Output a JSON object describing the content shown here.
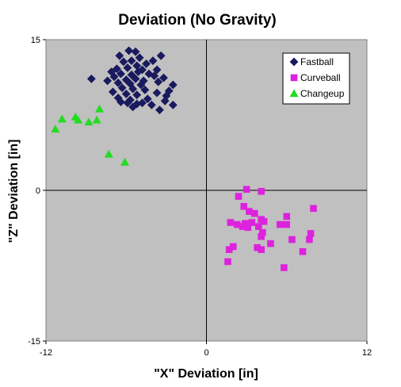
{
  "chart_data": {
    "type": "scatter",
    "title": "Deviation (No Gravity)",
    "xlabel": "\"X\" Deviation [in]",
    "ylabel": "\"Z\" Deviation [in]",
    "xlim": [
      -12,
      12
    ],
    "ylim": [
      -15,
      15
    ],
    "x_ticks": [
      "-12",
      "0",
      "12"
    ],
    "y_ticks": [
      "15",
      "0",
      "-15"
    ],
    "grid": false,
    "plot_background": "#c0c0c0",
    "legend_position": "top-right",
    "series": [
      {
        "name": "Fastball",
        "marker": "diamond",
        "color": "#1a1a5e",
        "points": [
          [
            -5.8,
            13.9
          ],
          [
            -5.3,
            13.8
          ],
          [
            -6.5,
            13.4
          ],
          [
            -5.0,
            13.2
          ],
          [
            -3.4,
            13.4
          ],
          [
            -6.2,
            12.8
          ],
          [
            -5.6,
            12.9
          ],
          [
            -4.5,
            12.6
          ],
          [
            -4.0,
            12.9
          ],
          [
            -5.2,
            12.4
          ],
          [
            -6.7,
            12.1
          ],
          [
            -5.9,
            12.2
          ],
          [
            -4.8,
            12.0
          ],
          [
            -3.7,
            12.0
          ],
          [
            -7.1,
            11.8
          ],
          [
            -6.4,
            11.6
          ],
          [
            -5.6,
            11.5
          ],
          [
            -5.1,
            11.8
          ],
          [
            -4.3,
            11.6
          ],
          [
            -3.9,
            11.4
          ],
          [
            -6.9,
            11.3
          ],
          [
            -6.0,
            11.0
          ],
          [
            -5.3,
            11.1
          ],
          [
            -4.7,
            10.9
          ],
          [
            -3.2,
            11.2
          ],
          [
            -8.6,
            11.1
          ],
          [
            -7.4,
            10.9
          ],
          [
            -6.6,
            10.7
          ],
          [
            -5.7,
            10.6
          ],
          [
            -4.9,
            10.5
          ],
          [
            -3.6,
            10.8
          ],
          [
            -2.5,
            10.5
          ],
          [
            -6.3,
            10.2
          ],
          [
            -5.5,
            10.1
          ],
          [
            -4.6,
            10.0
          ],
          [
            -2.8,
            9.9
          ],
          [
            -7.0,
            9.8
          ],
          [
            -6.0,
            9.6
          ],
          [
            -5.2,
            9.5
          ],
          [
            -3.7,
            9.7
          ],
          [
            -6.6,
            9.2
          ],
          [
            -5.7,
            9.0
          ],
          [
            -4.4,
            9.1
          ],
          [
            -3.0,
            9.4
          ],
          [
            -5.9,
            8.7
          ],
          [
            -5.2,
            8.6
          ],
          [
            -4.1,
            8.5
          ],
          [
            -6.4,
            8.8
          ],
          [
            -5.5,
            8.3
          ],
          [
            -2.5,
            8.5
          ],
          [
            -3.5,
            8.0
          ],
          [
            -4.8,
            8.7
          ],
          [
            -3.1,
            8.9
          ]
        ]
      },
      {
        "name": "Curveball",
        "marker": "square",
        "color": "#dd22dd",
        "points": [
          [
            3.0,
            0.1
          ],
          [
            4.1,
            -0.1
          ],
          [
            2.4,
            -0.6
          ],
          [
            2.8,
            -1.6
          ],
          [
            8.0,
            -1.8
          ],
          [
            3.2,
            -2.1
          ],
          [
            3.6,
            -2.3
          ],
          [
            6.0,
            -2.6
          ],
          [
            4.1,
            -2.9
          ],
          [
            4.3,
            -3.1
          ],
          [
            1.8,
            -3.2
          ],
          [
            2.3,
            -3.4
          ],
          [
            2.9,
            -3.3
          ],
          [
            3.4,
            -3.2
          ],
          [
            5.5,
            -3.4
          ],
          [
            6.0,
            -3.4
          ],
          [
            2.7,
            -3.6
          ],
          [
            3.1,
            -3.7
          ],
          [
            3.9,
            -3.6
          ],
          [
            4.2,
            -4.2
          ],
          [
            7.8,
            -4.3
          ],
          [
            4.1,
            -4.6
          ],
          [
            6.4,
            -4.9
          ],
          [
            7.7,
            -4.9
          ],
          [
            4.8,
            -5.3
          ],
          [
            2.0,
            -5.6
          ],
          [
            3.8,
            -5.7
          ],
          [
            1.7,
            -5.9
          ],
          [
            4.1,
            -5.9
          ],
          [
            7.2,
            -6.1
          ],
          [
            1.6,
            -7.1
          ],
          [
            5.8,
            -7.7
          ]
        ]
      },
      {
        "name": "Changeup",
        "marker": "triangle",
        "color": "#22dd22",
        "points": [
          [
            -8.0,
            8.1
          ],
          [
            -10.8,
            7.1
          ],
          [
            -9.8,
            7.3
          ],
          [
            -9.6,
            7.0
          ],
          [
            -8.2,
            7.0
          ],
          [
            -8.8,
            6.8
          ],
          [
            -11.3,
            6.1
          ],
          [
            -7.3,
            3.6
          ],
          [
            -6.1,
            2.8
          ]
        ]
      }
    ]
  }
}
